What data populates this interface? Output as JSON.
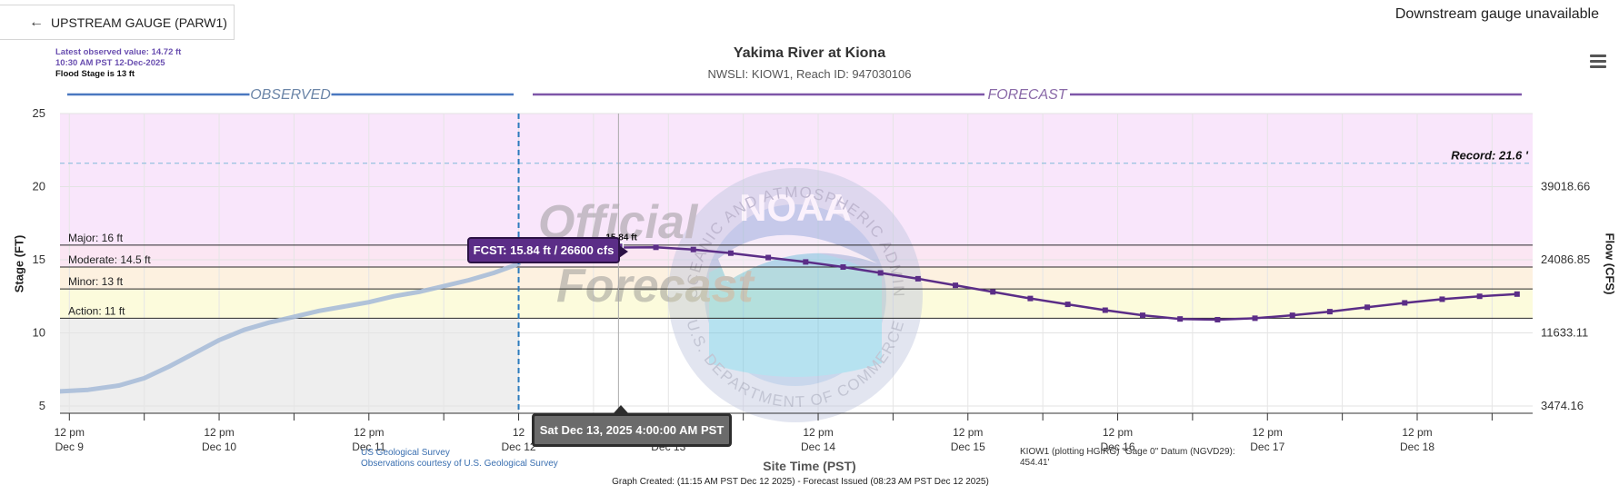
{
  "nav": {
    "upstream_label": "UPSTREAM GAUGE (PARW1)",
    "downstream_label": "Downstream gauge unavailable"
  },
  "header": {
    "latest_value": "Latest observed value: 14.72 ft",
    "latest_time": "10:30 AM PST 12-Dec-2025",
    "flood_stage_note": "Flood Stage is 13 ft",
    "title": "Yakima River at Kiona",
    "subtitle": "NWSLI: KIOW1, Reach ID: 947030106"
  },
  "colors": {
    "observed": "#a9bcd8",
    "forecast": "#5b2d87",
    "major_band": "#f9e6fb",
    "moderate_band": "#fbe6f3",
    "minor_band": "#fdf1e0",
    "action_band": "#fcfbdc",
    "normal_band": "#eeeeee",
    "record_line": "#7fb9da"
  },
  "watermark": {
    "noaa_text": "NOAA",
    "ring_top": "NATIONAL OCEANIC AND ATMOSPHERIC ADMINISTRATION",
    "ring_bottom": "U.S. DEPARTMENT OF COMMERCE",
    "official_line1": "Official",
    "official_line2": "Forecast"
  },
  "tooltips": {
    "time": "Sat Dec 13, 2025 4:00:00 AM PST",
    "forecast": "FCST: 15.84 ft / 26600 cfs",
    "point_label": "15.84 ft"
  },
  "footer": {
    "usgs_line1": "US Geological Survey",
    "usgs_line2": "Observations courtesy of U.S. Geological Survey",
    "datum_note": "KIOW1 (plotting HGIRG) \"Gage 0\" Datum (NGVD29): 454.41'",
    "created": "Graph Created: (11:15 AM PST Dec 12 2025) - Forecast Issued (08:23 AM PST Dec 12 2025)"
  },
  "chart_data": {
    "type": "line",
    "title": "Yakima River at Kiona",
    "xlabel": "Site Time (PST)",
    "ylabel": "Stage (FT)",
    "y2label": "Flow (CFS)",
    "ylim": [
      4.5,
      25
    ],
    "xlim_hours_from_dec9_noon": [
      -1.5,
      234.5
    ],
    "x_ticks": [
      {
        "line1": "12 pm",
        "line2": "Dec 9",
        "h": 0
      },
      {
        "line1": "12 pm",
        "line2": "Dec 10",
        "h": 24
      },
      {
        "line1": "12 pm",
        "line2": "Dec 11",
        "h": 48
      },
      {
        "line1": "12",
        "line2": "Dec 12",
        "h": 72
      },
      {
        "line1": "12 pm",
        "line2": "Dec 13",
        "h": 96
      },
      {
        "line1": "12 pm",
        "line2": "Dec 14",
        "h": 120
      },
      {
        "line1": "12 pm",
        "line2": "Dec 15",
        "h": 144
      },
      {
        "line1": "12 pm",
        "line2": "Dec 16",
        "h": 168
      },
      {
        "line1": "12 pm",
        "line2": "Dec 17",
        "h": 192
      },
      {
        "line1": "12 pm",
        "line2": "Dec 18",
        "h": 216
      }
    ],
    "y_ticks": [
      "5",
      "10",
      "15",
      "20",
      "25"
    ],
    "y2_ticks": [
      {
        "label": "3474.16",
        "stage": 5
      },
      {
        "label": "11633.11",
        "stage": 10
      },
      {
        "label": "24086.85",
        "stage": 15
      },
      {
        "label": "39018.66",
        "stage": 20
      }
    ],
    "flood_categories": [
      {
        "name": "Major: 16 ft",
        "stage": 16
      },
      {
        "name": "Moderate: 14.5 ft",
        "stage": 14.5
      },
      {
        "name": "Minor: 13 ft",
        "stage": 13
      },
      {
        "name": "Action: 11 ft",
        "stage": 11
      }
    ],
    "record": {
      "label": "Record: 21.6 '",
      "stage": 21.6
    },
    "section_labels": {
      "observed": "OBSERVED",
      "forecast": "FORECAST"
    },
    "now_h": 72,
    "cursor_h": 88,
    "series": [
      {
        "name": "Observed",
        "points": [
          [
            -1.5,
            6.0
          ],
          [
            3,
            6.1
          ],
          [
            8,
            6.4
          ],
          [
            12,
            6.9
          ],
          [
            16,
            7.7
          ],
          [
            20,
            8.6
          ],
          [
            24,
            9.5
          ],
          [
            28,
            10.2
          ],
          [
            32,
            10.7
          ],
          [
            36,
            11.1
          ],
          [
            40,
            11.5
          ],
          [
            44,
            11.8
          ],
          [
            48,
            12.1
          ],
          [
            52,
            12.5
          ],
          [
            56,
            12.8
          ],
          [
            60,
            13.2
          ],
          [
            64,
            13.6
          ],
          [
            68,
            14.1
          ],
          [
            72,
            14.72
          ]
        ]
      },
      {
        "name": "Forecast",
        "points": [
          [
            88,
            15.84
          ],
          [
            94,
            15.85
          ],
          [
            100,
            15.7
          ],
          [
            106,
            15.45
          ],
          [
            112,
            15.15
          ],
          [
            118,
            14.85
          ],
          [
            124,
            14.5
          ],
          [
            130,
            14.1
          ],
          [
            136,
            13.7
          ],
          [
            142,
            13.25
          ],
          [
            148,
            12.8
          ],
          [
            154,
            12.35
          ],
          [
            160,
            11.95
          ],
          [
            166,
            11.55
          ],
          [
            172,
            11.2
          ],
          [
            178,
            10.95
          ],
          [
            184,
            10.9
          ],
          [
            190,
            11.0
          ],
          [
            196,
            11.2
          ],
          [
            202,
            11.45
          ],
          [
            208,
            11.75
          ],
          [
            214,
            12.05
          ],
          [
            220,
            12.3
          ],
          [
            226,
            12.5
          ],
          [
            232,
            12.65
          ]
        ]
      }
    ]
  }
}
